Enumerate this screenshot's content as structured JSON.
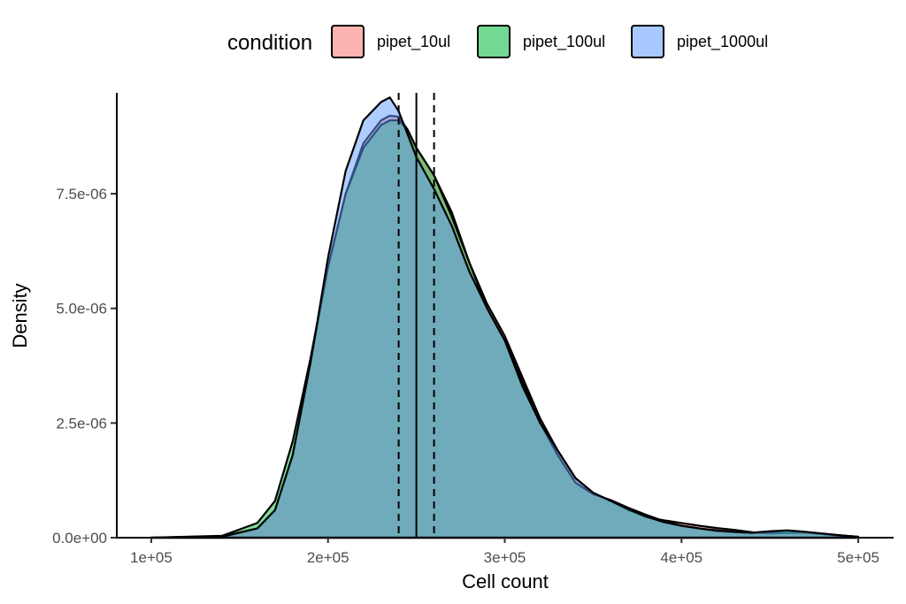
{
  "chart_data": {
    "type": "area",
    "subtype": "density",
    "xlabel": "Cell count",
    "ylabel": "Density",
    "xlim": [
      80000,
      520000
    ],
    "ylim": [
      0,
      9.7e-06
    ],
    "x_ticks": [
      100000,
      200000,
      300000,
      400000,
      500000
    ],
    "x_tick_labels": [
      "1e+05",
      "2e+05",
      "3e+05",
      "4e+05",
      "5e+05"
    ],
    "y_ticks": [
      0,
      2.5e-06,
      5e-06,
      7.5e-06
    ],
    "y_tick_labels": [
      "0.0e+00",
      "2.5e-06",
      "5.0e-06",
      "7.5e-06"
    ],
    "grid": false,
    "legend": {
      "title": "condition",
      "position": "top",
      "entries": [
        "pipet_10ul",
        "pipet_100ul",
        "pipet_1000ul"
      ]
    },
    "reference_lines": [
      {
        "x": 250000,
        "style": "solid"
      },
      {
        "x": 240000,
        "style": "dashed"
      },
      {
        "x": 260000,
        "style": "dashed"
      }
    ],
    "series": [
      {
        "name": "pipet_10ul",
        "color": "#F8766D",
        "x": [
          100000,
          140000,
          160000,
          170000,
          180000,
          190000,
          200000,
          210000,
          220000,
          230000,
          235000,
          240000,
          245000,
          250000,
          260000,
          270000,
          280000,
          290000,
          300000,
          310000,
          320000,
          330000,
          340000,
          350000,
          360000,
          370000,
          380000,
          390000,
          400000,
          410000,
          420000,
          430000,
          440000,
          450000,
          460000,
          470000,
          480000,
          490000,
          500000
        ],
        "y": [
          0,
          3e-08,
          2e-07,
          6e-07,
          1.8e-06,
          3.8e-06,
          5.9e-06,
          7.5e-06,
          8.6e-06,
          9.1e-06,
          9.2e-06,
          9.18e-06,
          8.9e-06,
          8.5e-06,
          7.9e-06,
          7.1e-06,
          6e-06,
          5.1e-06,
          4.4e-06,
          3.5e-06,
          2.6e-06,
          1.9e-06,
          1.3e-06,
          9.8e-07,
          8e-07,
          6e-07,
          4.5e-07,
          3.8e-07,
          3.2e-07,
          2.6e-07,
          2.1e-07,
          1.7e-07,
          1.2e-07,
          9e-08,
          1e-07,
          1.1e-07,
          8e-08,
          5e-08,
          2e-08
        ]
      },
      {
        "name": "pipet_100ul",
        "color": "#00BA38",
        "x": [
          100000,
          140000,
          160000,
          170000,
          180000,
          190000,
          200000,
          210000,
          220000,
          230000,
          235000,
          240000,
          245000,
          250000,
          260000,
          270000,
          280000,
          290000,
          300000,
          310000,
          320000,
          330000,
          340000,
          350000,
          360000,
          370000,
          380000,
          390000,
          400000,
          410000,
          420000,
          430000,
          440000,
          450000,
          460000,
          470000,
          480000,
          490000,
          500000
        ],
        "y": [
          0,
          4e-08,
          3.2e-07,
          8e-07,
          2.1e-06,
          3.9e-06,
          5.9e-06,
          7.5e-06,
          8.5e-06,
          9e-06,
          9.1e-06,
          9.1e-06,
          8.9e-06,
          8.5e-06,
          7.9e-06,
          7e-06,
          6e-06,
          5e-06,
          4.3e-06,
          3.4e-06,
          2.5e-06,
          1.8e-06,
          1.2e-06,
          9.5e-07,
          8.2e-07,
          6.5e-07,
          5e-07,
          3.6e-07,
          2.6e-07,
          2e-07,
          1.4e-07,
          1.2e-07,
          1e-07,
          1.2e-07,
          1.5e-07,
          1.2e-07,
          8e-08,
          4e-08,
          1e-08
        ]
      },
      {
        "name": "pipet_1000ul",
        "color": "#619CFF",
        "x": [
          100000,
          140000,
          160000,
          170000,
          180000,
          190000,
          200000,
          210000,
          220000,
          230000,
          235000,
          240000,
          245000,
          250000,
          260000,
          270000,
          280000,
          290000,
          300000,
          310000,
          320000,
          330000,
          340000,
          350000,
          360000,
          370000,
          380000,
          390000,
          400000,
          410000,
          420000,
          430000,
          440000,
          450000,
          460000,
          470000,
          480000,
          490000,
          500000
        ],
        "y": [
          0,
          2e-08,
          2e-07,
          6e-07,
          1.8e-06,
          3.8e-06,
          6.1e-06,
          8e-06,
          9.1e-06,
          9.5e-06,
          9.6e-06,
          9.3e-06,
          8.8e-06,
          8.3e-06,
          7.6e-06,
          6.8e-06,
          5.8e-06,
          5e-06,
          4.3e-06,
          3.3e-06,
          2.5e-06,
          1.9e-06,
          1.3e-06,
          9.8e-07,
          8e-07,
          6.2e-07,
          4.6e-07,
          3.4e-07,
          2.6e-07,
          2e-07,
          1.6e-07,
          1.3e-07,
          1.1e-07,
          1.4e-07,
          1.6e-07,
          1.3e-07,
          9e-08,
          5e-08,
          2e-08
        ]
      }
    ]
  }
}
